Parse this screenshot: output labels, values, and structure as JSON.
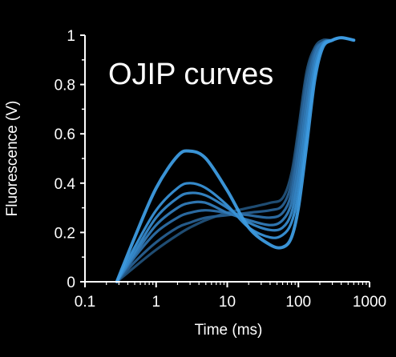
{
  "chart_data": {
    "type": "line",
    "title": "OJIP curves",
    "xlabel": "Time (ms)",
    "ylabel": "Fluorescence (V)",
    "xscale": "log",
    "xlim": [
      0.1,
      1000
    ],
    "ylim": [
      0,
      1
    ],
    "xticks": [
      "0.1",
      "1",
      "10",
      "100",
      "1000"
    ],
    "yticks": [
      "0",
      "0.2",
      "0.4",
      "0.6",
      "0.8",
      "1"
    ],
    "grid": false,
    "legend": "none",
    "colors": [
      "#3d9be0",
      "#3891d6",
      "#3587c8",
      "#317bb8",
      "#2c6ea6",
      "#275f90",
      "#215078"
    ],
    "series": [
      {
        "x": [
          0.28,
          0.5,
          1,
          2,
          3,
          5,
          10,
          20,
          40,
          60,
          80,
          100,
          130,
          170,
          220,
          300,
          400,
          600
        ],
        "y": [
          0.0,
          0.18,
          0.38,
          0.51,
          0.53,
          0.5,
          0.37,
          0.22,
          0.15,
          0.14,
          0.18,
          0.3,
          0.55,
          0.82,
          0.95,
          0.98,
          0.99,
          0.98
        ]
      },
      {
        "x": [
          0.28,
          0.5,
          1,
          2,
          3,
          5,
          10,
          20,
          40,
          60,
          80,
          100,
          130,
          170,
          220,
          300,
          400,
          600
        ],
        "y": [
          0.0,
          0.14,
          0.29,
          0.38,
          0.4,
          0.38,
          0.31,
          0.22,
          0.18,
          0.19,
          0.24,
          0.36,
          0.6,
          0.85,
          0.96,
          0.98,
          0.99,
          0.98
        ]
      },
      {
        "x": [
          0.28,
          0.5,
          1,
          2,
          3,
          5,
          10,
          20,
          40,
          60,
          80,
          100,
          130,
          170,
          220,
          300,
          400,
          600
        ],
        "y": [
          0.0,
          0.12,
          0.26,
          0.34,
          0.36,
          0.35,
          0.3,
          0.24,
          0.21,
          0.22,
          0.28,
          0.42,
          0.66,
          0.88,
          0.96,
          0.98,
          0.99,
          0.98
        ]
      },
      {
        "x": [
          0.28,
          0.5,
          1,
          2,
          3,
          5,
          10,
          20,
          40,
          60,
          80,
          100,
          130,
          170,
          220,
          300,
          400,
          600
        ],
        "y": [
          0.0,
          0.11,
          0.23,
          0.3,
          0.32,
          0.32,
          0.28,
          0.25,
          0.23,
          0.25,
          0.32,
          0.48,
          0.72,
          0.91,
          0.97,
          0.98,
          0.99,
          0.98
        ]
      },
      {
        "x": [
          0.28,
          0.5,
          1,
          2,
          3,
          5,
          10,
          20,
          40,
          60,
          80,
          100,
          130,
          170,
          220,
          300,
          400,
          600
        ],
        "y": [
          0.0,
          0.1,
          0.2,
          0.26,
          0.28,
          0.29,
          0.28,
          0.27,
          0.26,
          0.28,
          0.36,
          0.54,
          0.78,
          0.93,
          0.97,
          0.98,
          0.99,
          0.98
        ]
      },
      {
        "x": [
          0.28,
          0.5,
          1,
          2,
          3,
          5,
          10,
          20,
          40,
          60,
          80,
          100,
          130,
          170,
          220,
          300,
          400,
          600
        ],
        "y": [
          0.0,
          0.08,
          0.16,
          0.22,
          0.24,
          0.26,
          0.27,
          0.28,
          0.29,
          0.31,
          0.4,
          0.58,
          0.82,
          0.94,
          0.97,
          0.98,
          0.99,
          0.98
        ]
      },
      {
        "x": [
          0.28,
          0.5,
          1,
          2,
          3,
          5,
          10,
          20,
          40,
          60,
          80,
          100,
          130,
          170,
          220,
          300,
          400,
          600
        ],
        "y": [
          0.0,
          0.06,
          0.13,
          0.19,
          0.22,
          0.25,
          0.28,
          0.3,
          0.32,
          0.34,
          0.44,
          0.62,
          0.85,
          0.95,
          0.98,
          0.98,
          0.99,
          0.98
        ]
      }
    ]
  }
}
